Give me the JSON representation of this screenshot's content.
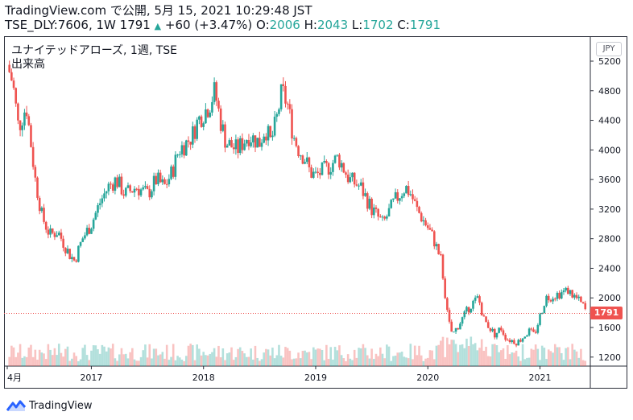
{
  "header": {
    "title": "TradingView.com で公開, 5月 15, 2021 10:29:48 JST",
    "symbol": "TSE_DLY:7606, 1W",
    "last": "1791",
    "change": "+60 (+3.47%)",
    "o_label": "O:",
    "o": "2006",
    "h_label": "H:",
    "h": "2043",
    "l_label": "L:",
    "l": "1702",
    "c_label": "C:",
    "c": "1791"
  },
  "legend": {
    "series_title": "ユナイテッドアローズ, 1週, TSE",
    "volume_title": "出来高"
  },
  "currency": "JPY",
  "price_label": "1791",
  "footer": {
    "brand": "TradingView"
  },
  "colors": {
    "up": "#26a69a",
    "down": "#ef5350",
    "last_line": "#ef5350"
  },
  "chart_data": {
    "type": "candlestick",
    "interval": "1W",
    "y_axis": {
      "ticks": [
        1200,
        1600,
        2000,
        2400,
        2800,
        3200,
        3600,
        4000,
        4400,
        4800,
        5200
      ],
      "range": [
        1100,
        5450
      ],
      "position": "right"
    },
    "x_axis": {
      "ticks": [
        {
          "label": "4月",
          "t": 2016.25
        },
        {
          "label": "2017",
          "t": 2017.0
        },
        {
          "label": "2018",
          "t": 2018.0
        },
        {
          "label": "2019",
          "t": 2019.0
        },
        {
          "label": "2020",
          "t": 2020.0
        },
        {
          "label": "2021",
          "t": 2021.0
        }
      ],
      "range": [
        2016.25,
        2021.42
      ]
    },
    "last_price": 1791,
    "close_path": [
      [
        2016.25,
        5150
      ],
      [
        2016.3,
        4900
      ],
      [
        2016.35,
        4300
      ],
      [
        2016.42,
        4600
      ],
      [
        2016.5,
        3600
      ],
      [
        2016.56,
        3100
      ],
      [
        2016.63,
        2850
      ],
      [
        2016.7,
        2900
      ],
      [
        2016.75,
        2750
      ],
      [
        2016.8,
        2600
      ],
      [
        2016.85,
        2500
      ],
      [
        2016.92,
        2800
      ],
      [
        2017.0,
        3000
      ],
      [
        2017.08,
        3300
      ],
      [
        2017.15,
        3500
      ],
      [
        2017.22,
        3600
      ],
      [
        2017.3,
        3400
      ],
      [
        2017.4,
        3500
      ],
      [
        2017.5,
        3400
      ],
      [
        2017.58,
        3600
      ],
      [
        2017.65,
        3500
      ],
      [
        2017.72,
        3700
      ],
      [
        2017.78,
        4000
      ],
      [
        2017.85,
        4100
      ],
      [
        2017.9,
        4200
      ],
      [
        2017.95,
        4400
      ],
      [
        2018.05,
        4600
      ],
      [
        2018.1,
        4800
      ],
      [
        2018.15,
        4400
      ],
      [
        2018.2,
        4100
      ],
      [
        2018.3,
        4000
      ],
      [
        2018.4,
        4200
      ],
      [
        2018.5,
        4100
      ],
      [
        2018.55,
        4300
      ],
      [
        2018.6,
        4100
      ],
      [
        2018.65,
        4400
      ],
      [
        2018.7,
        4800
      ],
      [
        2018.75,
        4600
      ],
      [
        2018.8,
        4200
      ],
      [
        2018.85,
        4000
      ],
      [
        2018.9,
        3900
      ],
      [
        2018.95,
        3700
      ],
      [
        2019.0,
        3650
      ],
      [
        2019.1,
        3750
      ],
      [
        2019.2,
        3900
      ],
      [
        2019.3,
        3600
      ],
      [
        2019.4,
        3500
      ],
      [
        2019.5,
        3200
      ],
      [
        2019.6,
        3000
      ],
      [
        2019.7,
        3300
      ],
      [
        2019.8,
        3500
      ],
      [
        2019.85,
        3400
      ],
      [
        2019.9,
        3200
      ],
      [
        2020.0,
        2950
      ],
      [
        2020.05,
        2800
      ],
      [
        2020.12,
        2500
      ],
      [
        2020.18,
        1700
      ],
      [
        2020.22,
        1500
      ],
      [
        2020.3,
        1700
      ],
      [
        2020.38,
        1900
      ],
      [
        2020.45,
        2000
      ],
      [
        2020.5,
        1700
      ],
      [
        2020.6,
        1500
      ],
      [
        2020.65,
        1600
      ],
      [
        2020.7,
        1450
      ],
      [
        2020.8,
        1400
      ],
      [
        2020.9,
        1550
      ],
      [
        2020.95,
        1500
      ],
      [
        2021.05,
        2000
      ],
      [
        2021.15,
        2050
      ],
      [
        2021.25,
        2100
      ],
      [
        2021.32,
        2000
      ],
      [
        2021.38,
        1900
      ],
      [
        2021.42,
        1791
      ]
    ]
  }
}
